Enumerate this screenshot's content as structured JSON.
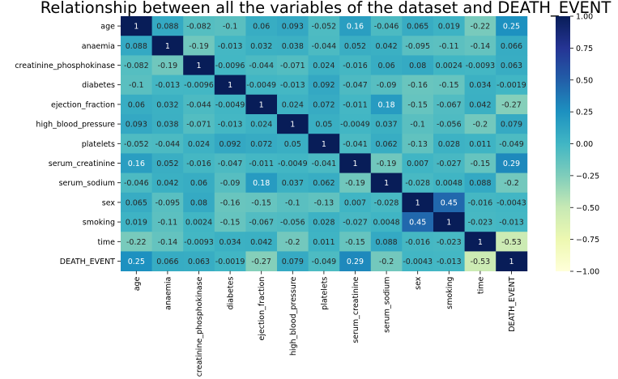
{
  "chart_data": {
    "type": "heatmap",
    "title": "Relationship between all the variables of the dataset and DEATH_EVENT",
    "rows": [
      "age",
      "anaemia",
      "creatinine_phosphokinase",
      "diabetes",
      "ejection_fraction",
      "high_blood_pressure",
      "platelets",
      "serum_creatinine",
      "serum_sodium",
      "sex",
      "smoking",
      "time",
      "DEATH_EVENT"
    ],
    "columns": [
      "age",
      "anaemia",
      "creatinine_phosphokinase",
      "diabetes",
      "ejection_fraction",
      "high_blood_pressure",
      "platelets",
      "serum_creatinine",
      "serum_sodium",
      "sex",
      "smoking",
      "time",
      "DEATH_EVENT"
    ],
    "values": [
      [
        1,
        0.088,
        -0.082,
        -0.1,
        0.06,
        0.093,
        -0.052,
        0.16,
        -0.046,
        0.065,
        0.019,
        -0.22,
        0.25
      ],
      [
        0.088,
        1,
        -0.19,
        -0.013,
        0.032,
        0.038,
        -0.044,
        0.052,
        0.042,
        -0.095,
        -0.11,
        -0.14,
        0.066
      ],
      [
        -0.082,
        -0.19,
        1,
        -0.0096,
        -0.044,
        -0.071,
        0.024,
        -0.016,
        0.06,
        0.08,
        0.0024,
        -0.0093,
        0.063
      ],
      [
        -0.1,
        -0.013,
        -0.0096,
        1,
        -0.0049,
        -0.013,
        0.092,
        -0.047,
        -0.09,
        -0.16,
        -0.15,
        0.034,
        -0.0019
      ],
      [
        0.06,
        0.032,
        -0.044,
        -0.0049,
        1,
        0.024,
        0.072,
        -0.011,
        0.18,
        -0.15,
        -0.067,
        0.042,
        -0.27
      ],
      [
        0.093,
        0.038,
        -0.071,
        -0.013,
        0.024,
        1,
        0.05,
        -0.0049,
        0.037,
        -0.1,
        -0.056,
        -0.2,
        0.079
      ],
      [
        -0.052,
        -0.044,
        0.024,
        0.092,
        0.072,
        0.05,
        1,
        -0.041,
        0.062,
        -0.13,
        0.028,
        0.011,
        -0.049
      ],
      [
        0.16,
        0.052,
        -0.016,
        -0.047,
        -0.011,
        -0.0049,
        -0.041,
        1,
        -0.19,
        0.007,
        -0.027,
        -0.15,
        0.29
      ],
      [
        -0.046,
        0.042,
        0.06,
        -0.09,
        0.18,
        0.037,
        0.062,
        -0.19,
        1,
        -0.028,
        0.0048,
        0.088,
        -0.2
      ],
      [
        0.065,
        -0.095,
        0.08,
        -0.16,
        -0.15,
        -0.1,
        -0.13,
        0.007,
        -0.028,
        1,
        0.45,
        -0.016,
        -0.0043
      ],
      [
        0.019,
        -0.11,
        0.0024,
        -0.15,
        -0.067,
        -0.056,
        0.028,
        -0.027,
        0.0048,
        0.45,
        1,
        -0.023,
        -0.013
      ],
      [
        -0.22,
        -0.14,
        -0.0093,
        0.034,
        0.042,
        -0.2,
        0.011,
        -0.15,
        0.088,
        -0.016,
        -0.023,
        1,
        -0.53
      ],
      [
        0.25,
        0.066,
        0.063,
        -0.0019,
        -0.27,
        0.079,
        -0.049,
        0.29,
        -0.2,
        -0.0043,
        -0.013,
        -0.53,
        1
      ]
    ],
    "colormap": "YlGnBu",
    "colormap_stops": [
      "#ffffd9",
      "#edf8b1",
      "#c7e9b4",
      "#7fcdbb",
      "#41b6c4",
      "#1d91c0",
      "#225ea8",
      "#253494",
      "#081d58"
    ],
    "vmin": -1,
    "vmax": 1,
    "colorbar_ticks": [
      "1.00",
      "0.75",
      "0.50",
      "0.25",
      "0.00",
      "−0.25",
      "−0.50",
      "−0.75",
      "−1.00"
    ],
    "annotate": true
  }
}
